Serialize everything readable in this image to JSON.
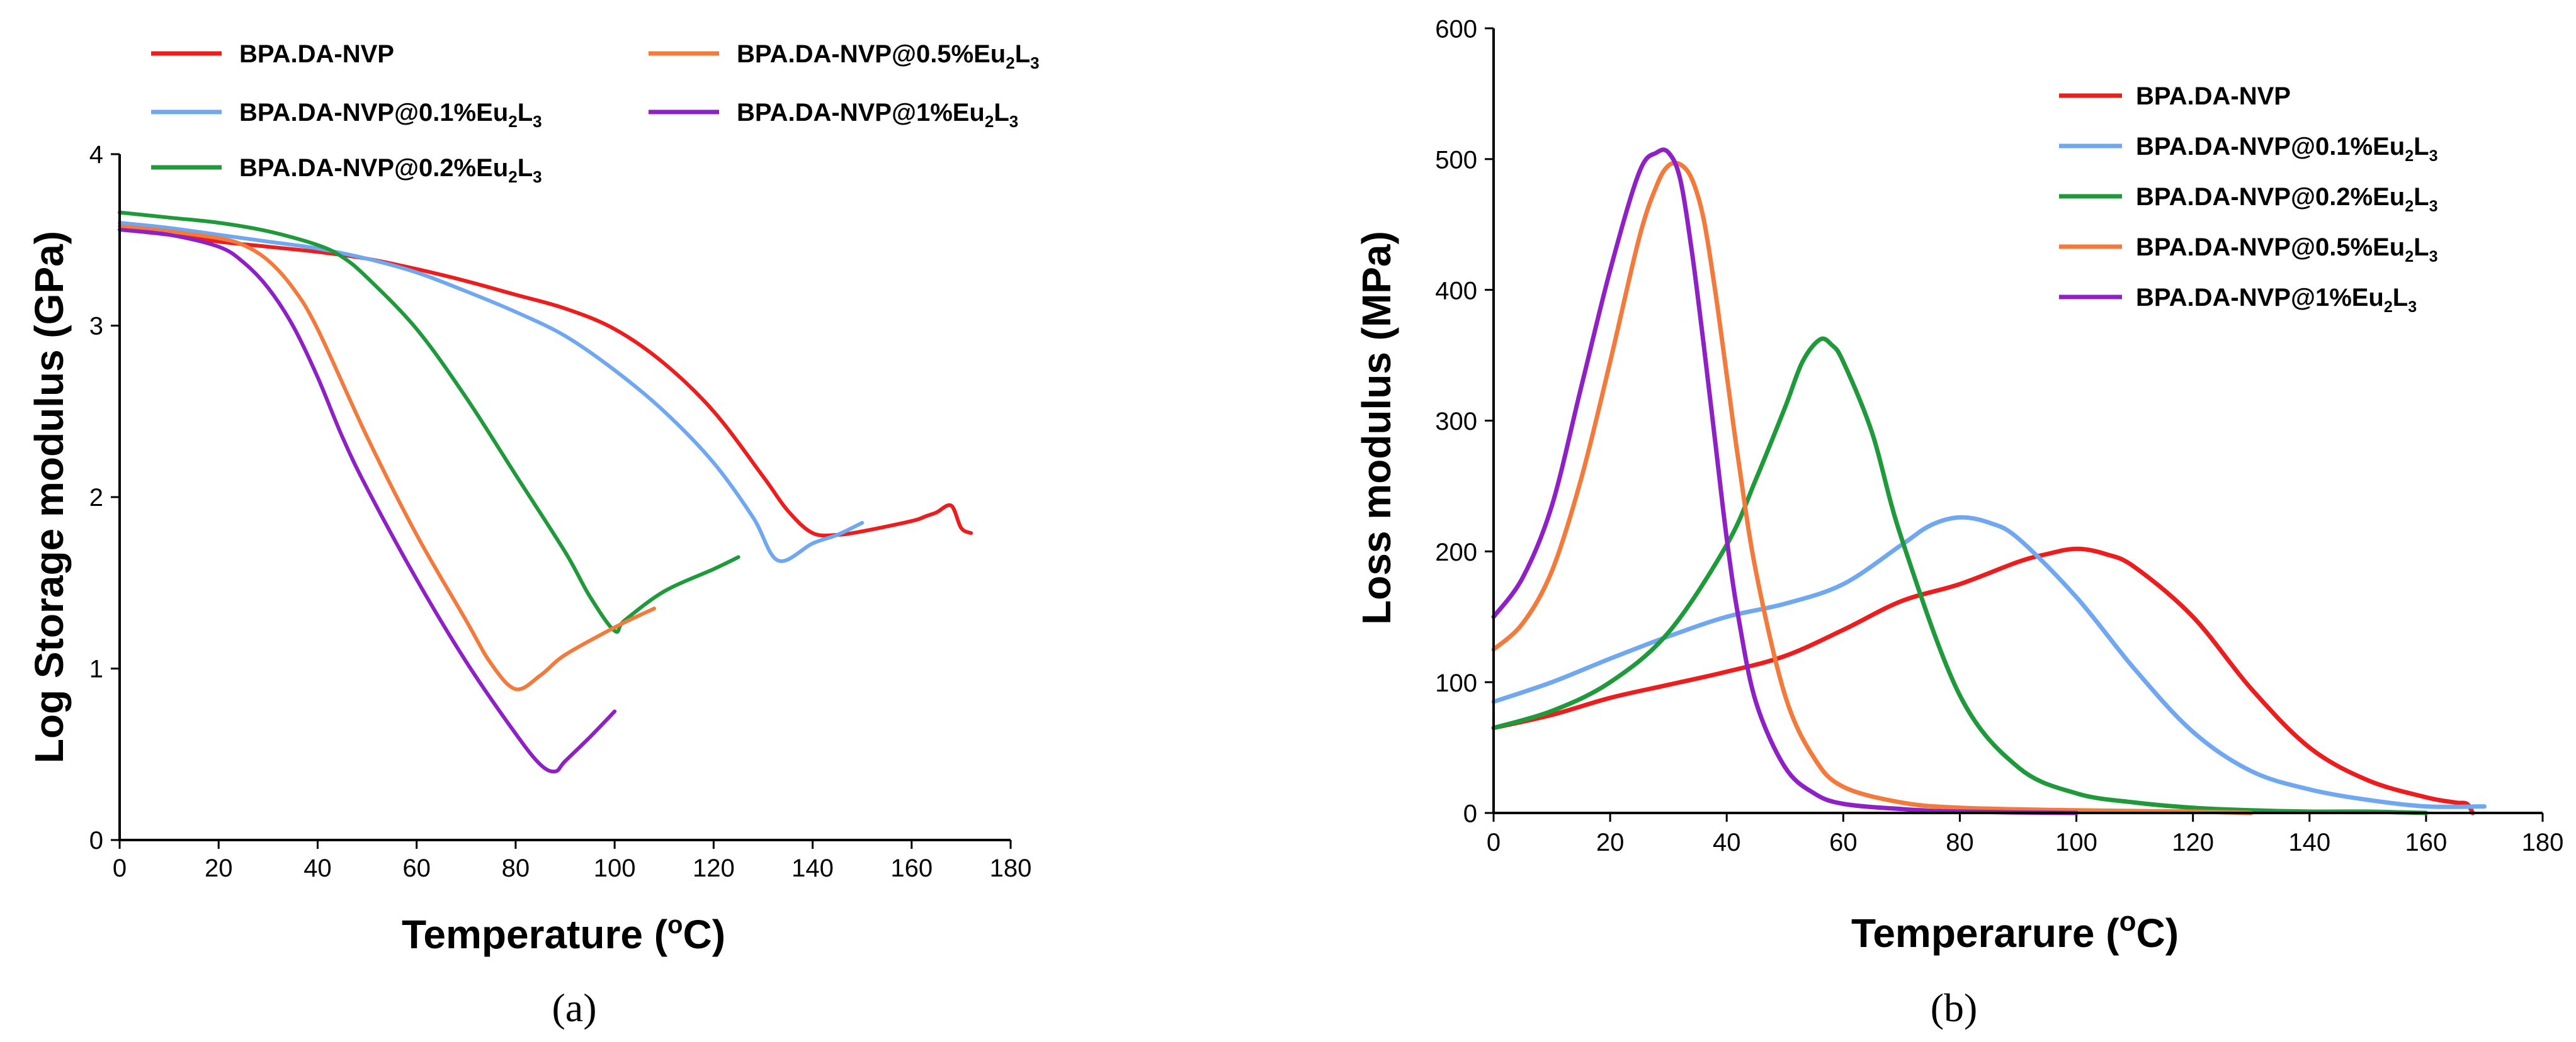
{
  "figure": {
    "panel_a_label": "(a)",
    "panel_b_label": "(b)"
  },
  "chart_data": [
    {
      "type": "line",
      "panel": "a",
      "title": "",
      "xlabel": "Temperature (oC)",
      "xlabel_main": "Temperature (",
      "xlabel_sup": "o",
      "xlabel_tail": "C)",
      "ylabel": "Log Storage modulus (GPa)",
      "xlim": [
        0,
        180
      ],
      "ylim": [
        0,
        4
      ],
      "xticks": [
        0,
        20,
        40,
        60,
        80,
        100,
        120,
        140,
        160,
        180
      ],
      "yticks": [
        0,
        1,
        2,
        3,
        4
      ],
      "grid": false,
      "legend_position": "top, two columns",
      "series": [
        {
          "name": "BPA.DA-NVP",
          "base": "BPA.DA-NVP",
          "sub1": "",
          "sub2": "",
          "color": "#ee1c1c",
          "x": [
            0,
            10,
            20,
            30,
            40,
            50,
            60,
            70,
            80,
            90,
            100,
            110,
            120,
            130,
            135,
            140,
            145,
            150,
            160,
            163,
            165,
            168,
            170,
            172
          ],
          "y": [
            3.56,
            3.53,
            3.49,
            3.46,
            3.43,
            3.39,
            3.33,
            3.26,
            3.18,
            3.1,
            2.98,
            2.78,
            2.5,
            2.12,
            1.92,
            1.79,
            1.78,
            1.8,
            1.86,
            1.89,
            1.91,
            1.95,
            1.82,
            1.79
          ]
        },
        {
          "name": "BPA.DA-NVP@0.1%Eu2L3",
          "base": "BPA.DA-NVP@0.1%Eu",
          "sub1": "2",
          "sub2": "3",
          "color": "#6fa8f0",
          "x": [
            0,
            10,
            20,
            30,
            40,
            50,
            60,
            70,
            80,
            90,
            100,
            110,
            120,
            128,
            133,
            140,
            145,
            150
          ],
          "y": [
            3.6,
            3.57,
            3.53,
            3.49,
            3.45,
            3.39,
            3.31,
            3.2,
            3.08,
            2.94,
            2.74,
            2.5,
            2.2,
            1.88,
            1.63,
            1.73,
            1.78,
            1.85
          ]
        },
        {
          "name": "BPA.DA-NVP@0.2%Eu2L3",
          "base": "BPA.DA-NVP@0.2%Eu",
          "sub1": "2",
          "sub2": "3",
          "color": "#1f9a3a",
          "x": [
            0,
            10,
            20,
            30,
            40,
            45,
            50,
            60,
            70,
            80,
            90,
            95,
            100,
            102,
            110,
            120,
            125
          ],
          "y": [
            3.66,
            3.63,
            3.6,
            3.55,
            3.47,
            3.4,
            3.28,
            2.98,
            2.58,
            2.13,
            1.68,
            1.42,
            1.22,
            1.28,
            1.45,
            1.58,
            1.65
          ]
        },
        {
          "name": "BPA.DA-NVP@0.5%Eu2L3",
          "base": "BPA.DA-NVP@0.5%Eu",
          "sub1": "2",
          "sub2": "3",
          "color": "#f47a3c",
          "x": [
            0,
            10,
            20,
            25,
            30,
            35,
            40,
            50,
            60,
            70,
            75,
            80,
            85,
            90,
            100,
            105,
            108
          ],
          "y": [
            3.58,
            3.55,
            3.51,
            3.47,
            3.38,
            3.22,
            2.98,
            2.35,
            1.78,
            1.28,
            1.03,
            0.88,
            0.96,
            1.08,
            1.24,
            1.31,
            1.35
          ]
        },
        {
          "name": "BPA.DA-NVP@1%Eu2L3",
          "base": "BPA.DA-NVP@1%Eu",
          "sub1": "2",
          "sub2": "3",
          "color": "#8f20c8",
          "x": [
            0,
            10,
            20,
            25,
            30,
            35,
            40,
            45,
            50,
            60,
            70,
            80,
            85,
            88,
            90,
            95,
            100
          ],
          "y": [
            3.56,
            3.53,
            3.46,
            3.37,
            3.22,
            3.0,
            2.7,
            2.35,
            2.05,
            1.52,
            1.04,
            0.62,
            0.44,
            0.4,
            0.46,
            0.6,
            0.75
          ]
        }
      ]
    },
    {
      "type": "line",
      "panel": "b",
      "title": "",
      "xlabel": "Temperarure (oC)",
      "xlabel_main": "Temperarure (",
      "xlabel_sup": "o",
      "xlabel_tail": "C)",
      "ylabel": "Loss modulus (MPa)",
      "xlim": [
        0,
        180
      ],
      "ylim": [
        0,
        600
      ],
      "xticks": [
        0,
        20,
        40,
        60,
        80,
        100,
        120,
        140,
        160,
        180
      ],
      "yticks": [
        0,
        100,
        200,
        300,
        400,
        500,
        600
      ],
      "grid": false,
      "legend_position": "right, inside",
      "series": [
        {
          "name": "BPA.DA-NVP",
          "base": "BPA.DA-NVP",
          "sub1": "",
          "sub2": "",
          "color": "#ee1c1c",
          "x": [
            0,
            10,
            20,
            30,
            40,
            50,
            60,
            70,
            80,
            90,
            95,
            100,
            105,
            110,
            120,
            130,
            140,
            150,
            160,
            165,
            167,
            168
          ],
          "y": [
            65,
            75,
            88,
            98,
            108,
            120,
            140,
            162,
            175,
            192,
            198,
            202,
            198,
            188,
            150,
            95,
            50,
            25,
            12,
            8,
            7,
            0
          ]
        },
        {
          "name": "BPA.DA-NVP@0.1%Eu2L3",
          "base": "BPA.DA-NVP@0.1%Eu",
          "sub1": "2",
          "sub2": "3",
          "color": "#6fa8f0",
          "x": [
            0,
            10,
            20,
            30,
            40,
            50,
            60,
            70,
            75,
            80,
            85,
            90,
            100,
            110,
            120,
            130,
            140,
            150,
            160,
            170
          ],
          "y": [
            85,
            100,
            118,
            135,
            150,
            160,
            175,
            205,
            220,
            226,
            222,
            210,
            165,
            110,
            62,
            32,
            18,
            10,
            5,
            5
          ]
        },
        {
          "name": "BPA.DA-NVP@0.2%Eu2L3",
          "base": "BPA.DA-NVP@0.2%Eu",
          "sub1": "2",
          "sub2": "3",
          "color": "#1f9a3a",
          "x": [
            0,
            10,
            20,
            30,
            40,
            45,
            50,
            53,
            56,
            58,
            60,
            65,
            70,
            80,
            90,
            100,
            110,
            120,
            130,
            140,
            150,
            160
          ],
          "y": [
            65,
            78,
            100,
            138,
            205,
            255,
            310,
            345,
            362,
            358,
            345,
            290,
            210,
            90,
            35,
            15,
            8,
            4,
            2,
            1,
            1,
            0
          ]
        },
        {
          "name": "BPA.DA-NVP@0.5%Eu2L3",
          "base": "BPA.DA-NVP@0.5%Eu",
          "sub1": "2",
          "sub2": "3",
          "color": "#f47a3c",
          "x": [
            0,
            5,
            10,
            15,
            20,
            25,
            28,
            30,
            32,
            34,
            36,
            38,
            40,
            42,
            45,
            50,
            55,
            60,
            70,
            80,
            100,
            120,
            130
          ],
          "y": [
            125,
            145,
            185,
            255,
            345,
            440,
            480,
            495,
            496,
            485,
            455,
            400,
            335,
            270,
            185,
            90,
            42,
            20,
            8,
            4,
            2,
            1,
            0
          ]
        },
        {
          "name": "BPA.DA-NVP@1%Eu2L3",
          "base": "BPA.DA-NVP@1%Eu",
          "sub1": "2",
          "sub2": "3",
          "color": "#8f20c8",
          "x": [
            0,
            5,
            10,
            15,
            20,
            25,
            28,
            30,
            32,
            34,
            36,
            38,
            40,
            42,
            45,
            50,
            55,
            60,
            70,
            80,
            100
          ],
          "y": [
            150,
            180,
            235,
            325,
            415,
            490,
            505,
            505,
            485,
            430,
            360,
            285,
            210,
            150,
            85,
            35,
            15,
            7,
            3,
            1,
            0
          ]
        }
      ]
    }
  ]
}
